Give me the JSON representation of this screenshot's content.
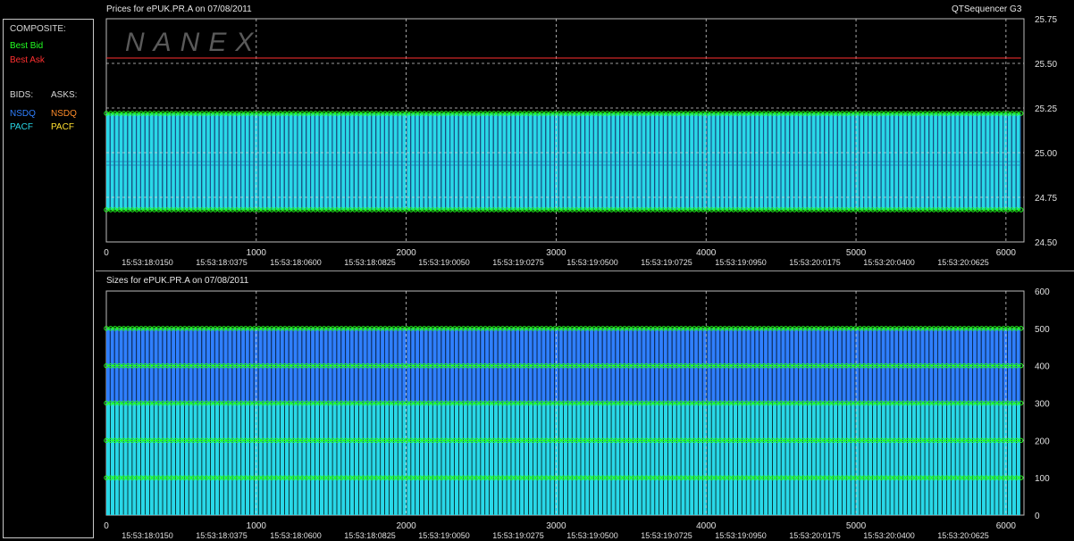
{
  "sidebar": {
    "composite_label": "COMPOSITE:",
    "best_bid": {
      "label": "Best Bid",
      "color": "#22ff22"
    },
    "best_ask": {
      "label": "Best Ask",
      "color": "#ff3030"
    },
    "bids_label": "BIDS:",
    "asks_label": "ASKS:",
    "bid_items": [
      {
        "label": "NSDQ",
        "color": "#2f7fff"
      },
      {
        "label": "PACF",
        "color": "#29d8e8"
      }
    ],
    "ask_items": [
      {
        "label": "NSDQ",
        "color": "#ff8c2a"
      },
      {
        "label": "PACF",
        "color": "#ffe030"
      }
    ]
  },
  "app_name": "QTSequencer G3",
  "watermark": "NANEX",
  "chart_data": [
    {
      "type": "bar",
      "title": "Prices for  ePUK.PR.A  on  07/08/2011",
      "x_ticks": [
        0,
        1000,
        2000,
        3000,
        4000,
        5000,
        6000
      ],
      "x_time_labels": [
        "15:53:18:0150",
        "15:53:18:0375",
        "15:53:18:0600",
        "15:53:18:0825",
        "15:53:19:0050",
        "15:53:19:0275",
        "15:53:19:0500",
        "15:53:19:0725",
        "15:53:19:0950",
        "15:53:20:0175",
        "15:53:20:0400",
        "15:53:20:0625"
      ],
      "xlim": [
        0,
        6120
      ],
      "ylim": [
        24.5,
        25.75
      ],
      "y_ticks": [
        "24.50",
        "24.75",
        "25.00",
        "25.25",
        "25.50",
        "25.75"
      ],
      "grid": true,
      "series": [
        {
          "name": "Best Ask",
          "color": "#ff3030",
          "style": "line",
          "x": [
            0,
            6100
          ],
          "values": [
            25.53,
            25.53
          ]
        },
        {
          "name": "Best Bid",
          "color": "#22ff22",
          "style": "markers",
          "x_start": 0,
          "x_end": 6100,
          "values": [
            25.22,
            24.68
          ]
        },
        {
          "name": "NSDQ",
          "color": "#2f7fff",
          "style": "bars",
          "range": [
            24.68,
            25.22
          ]
        },
        {
          "name": "PACF",
          "color": "#29d8e8",
          "style": "bars",
          "range": [
            24.68,
            25.22
          ]
        }
      ]
    },
    {
      "type": "bar",
      "title": "Sizes for  ePUK.PR.A  on  07/08/2011",
      "x_ticks": [
        0,
        1000,
        2000,
        3000,
        4000,
        5000,
        6000
      ],
      "x_time_labels": [
        "15:53:18:0150",
        "15:53:18:0375",
        "15:53:18:0600",
        "15:53:18:0825",
        "15:53:19:0050",
        "15:53:19:0275",
        "15:53:19:0500",
        "15:53:19:0725",
        "15:53:19:0950",
        "15:53:20:0175",
        "15:53:20:0400",
        "15:53:20:0625"
      ],
      "xlim": [
        0,
        6120
      ],
      "ylim": [
        0,
        600
      ],
      "y_ticks": [
        "0",
        "100",
        "200",
        "300",
        "400",
        "500",
        "600"
      ],
      "grid": true,
      "size_levels": [
        100,
        200,
        300,
        400,
        500
      ],
      "series": [
        {
          "name": "NSDQ",
          "color": "#2f7fff",
          "range": [
            300,
            500
          ]
        },
        {
          "name": "PACF",
          "color": "#29d8e8",
          "range": [
            0,
            300
          ]
        }
      ]
    }
  ]
}
